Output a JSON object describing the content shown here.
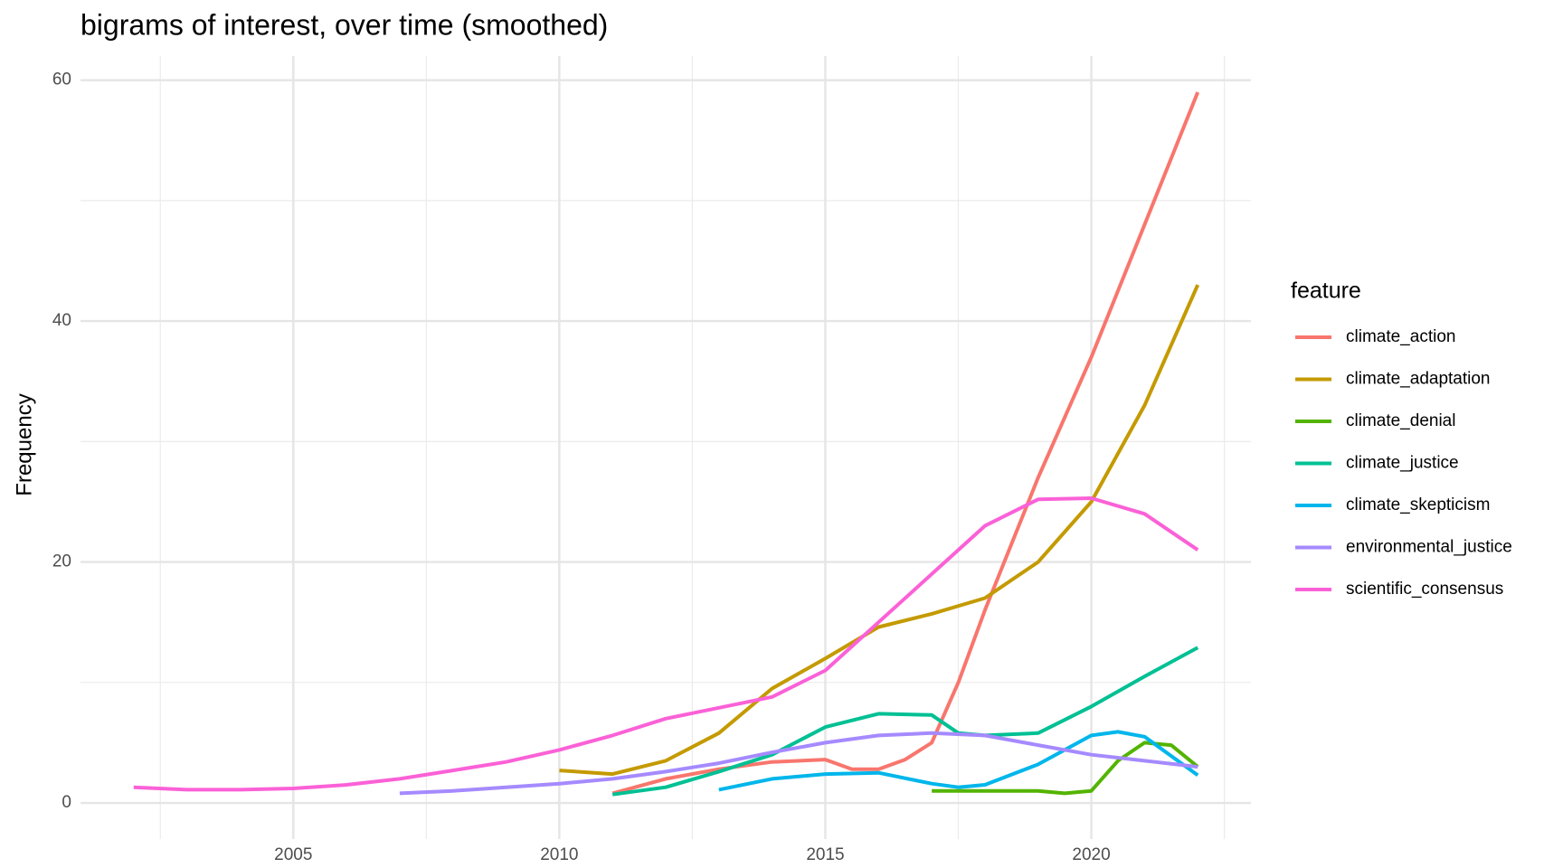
{
  "chart_data": {
    "type": "line",
    "title": "bigrams of interest, over time (smoothed)",
    "y_label": "Frequency",
    "legend_title": "feature",
    "xlim": [
      2001,
      2023
    ],
    "xticks": [
      2005,
      2010,
      2015,
      2020
    ],
    "xminor_ticks": [
      2002.5,
      2007.5,
      2012.5,
      2017.5,
      2022.5
    ],
    "ylim": [
      -3,
      62
    ],
    "yticks": [
      0,
      20,
      40,
      60
    ],
    "yminor_ticks": [
      10,
      30,
      50
    ],
    "grid": true,
    "legend_position": "right",
    "series": [
      {
        "name": "climate_action",
        "color": "#F8766D",
        "x": [
          2011,
          2012,
          2013,
          2014,
          2015,
          2015.5,
          2016,
          2016.5,
          2017,
          2017.5,
          2018,
          2019,
          2020,
          2021,
          2022
        ],
        "values": [
          0.8,
          2,
          2.8,
          3.4,
          3.6,
          2.8,
          2.8,
          3.6,
          5,
          10,
          16,
          27,
          37,
          48,
          59
        ]
      },
      {
        "name": "climate_adaptation",
        "color": "#C49A00",
        "x": [
          2010,
          2011,
          2012,
          2013,
          2014,
          2015,
          2016,
          2017,
          2018,
          2019,
          2020,
          2021,
          2022
        ],
        "values": [
          2.7,
          2.4,
          3.5,
          5.8,
          9.5,
          12,
          14.6,
          15.7,
          17,
          20,
          25,
          33,
          43
        ]
      },
      {
        "name": "climate_denial",
        "color": "#53B400",
        "x": [
          2017,
          2018,
          2019,
          2019.5,
          2020,
          2020.5,
          2021,
          2021.5,
          2022
        ],
        "values": [
          1,
          1,
          1,
          0.8,
          1,
          3.5,
          5,
          4.8,
          3
        ]
      },
      {
        "name": "climate_justice",
        "color": "#00C094",
        "x": [
          2011,
          2012,
          2013,
          2014,
          2015,
          2016,
          2017,
          2017.5,
          2018,
          2019,
          2020,
          2021,
          2022
        ],
        "values": [
          0.7,
          1.3,
          2.6,
          4,
          6.3,
          7.4,
          7.3,
          5.8,
          5.6,
          5.8,
          8,
          10.5,
          12.9
        ]
      },
      {
        "name": "climate_skepticism",
        "color": "#00B6EB",
        "x": [
          2013,
          2014,
          2015,
          2016,
          2017,
          2017.5,
          2018,
          2019,
          2020,
          2020.5,
          2021,
          2022
        ],
        "values": [
          1.1,
          2,
          2.4,
          2.5,
          1.6,
          1.3,
          1.5,
          3.2,
          5.6,
          5.9,
          5.5,
          2.3
        ]
      },
      {
        "name": "environmental_justice",
        "color": "#A58AFF",
        "x": [
          2007,
          2008,
          2009,
          2010,
          2011,
          2012,
          2013,
          2014,
          2015,
          2016,
          2017,
          2018,
          2019,
          2020,
          2021,
          2022
        ],
        "values": [
          0.8,
          1,
          1.3,
          1.6,
          2,
          2.6,
          3.3,
          4.2,
          5,
          5.6,
          5.8,
          5.6,
          4.8,
          4,
          3.5,
          3
        ]
      },
      {
        "name": "scientific_consensus",
        "color": "#FB61D7",
        "x": [
          2002,
          2003,
          2004,
          2005,
          2006,
          2007,
          2008,
          2009,
          2010,
          2011,
          2012,
          2013,
          2014,
          2015,
          2016,
          2017,
          2018,
          2019,
          2020,
          2021,
          2022
        ],
        "values": [
          1.3,
          1.1,
          1.1,
          1.2,
          1.5,
          2,
          2.7,
          3.4,
          4.4,
          5.6,
          7,
          7.9,
          8.8,
          11,
          15,
          19,
          23,
          25.2,
          25.3,
          24,
          21
        ]
      }
    ]
  }
}
